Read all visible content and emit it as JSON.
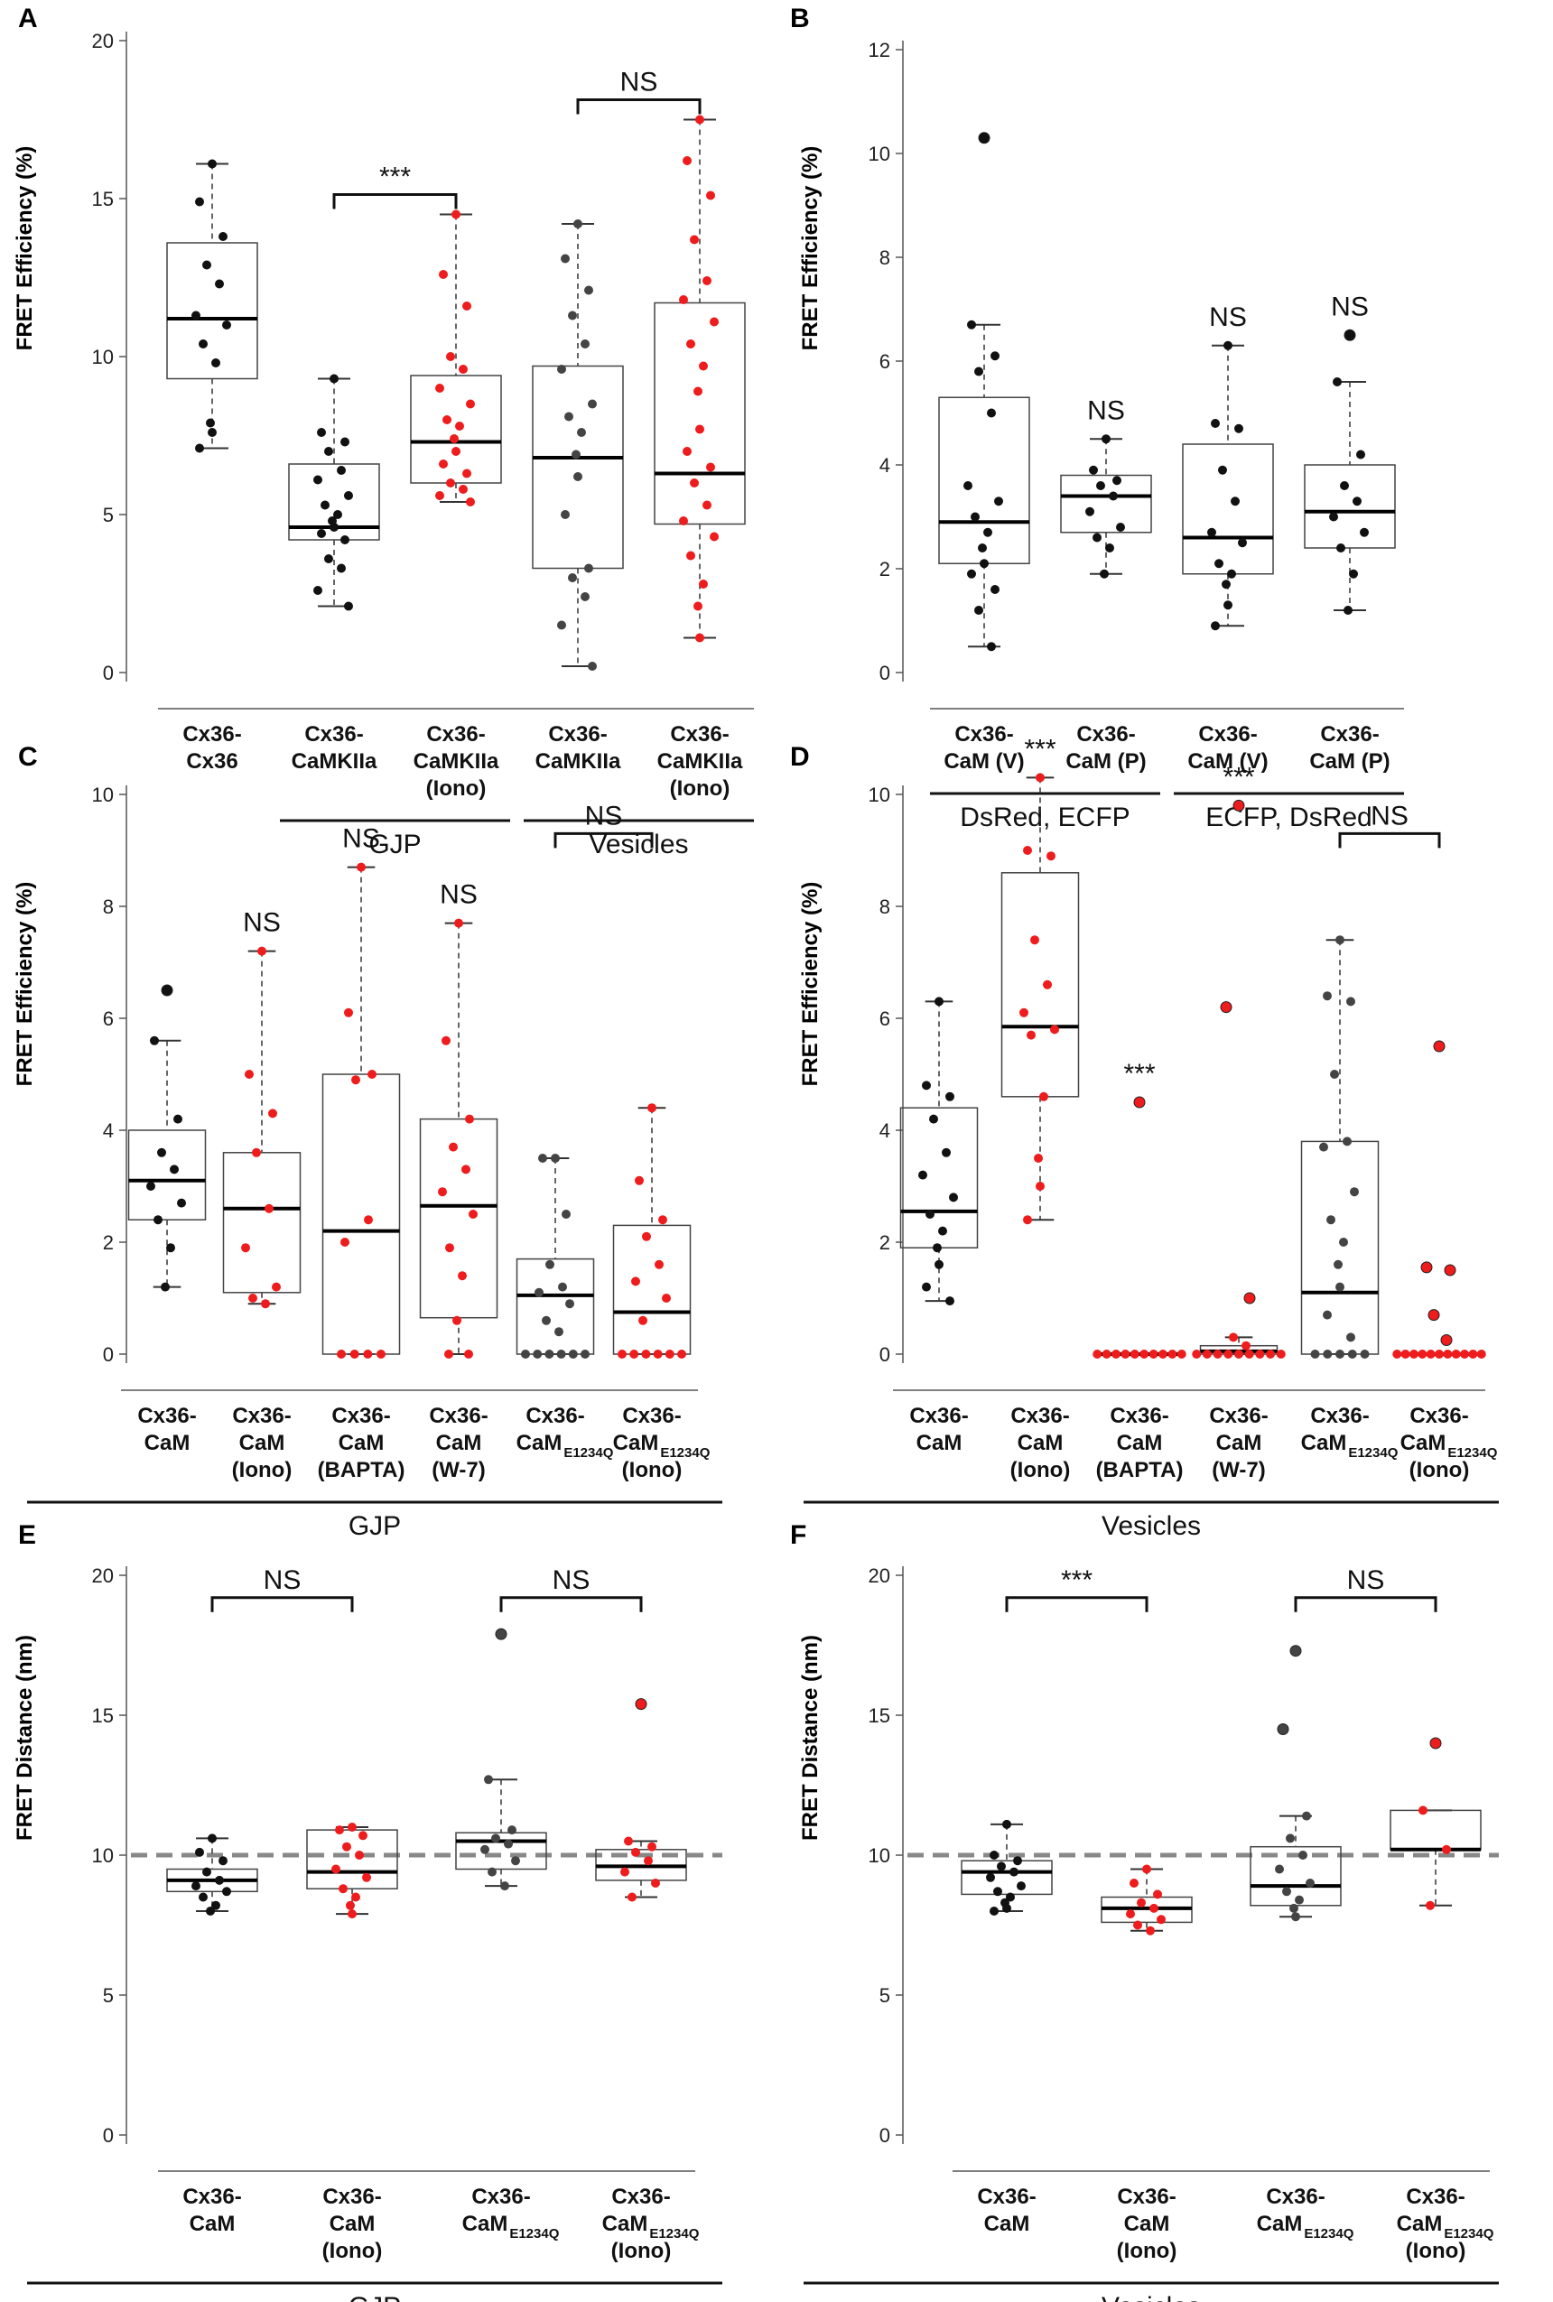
{
  "figure": {
    "panels": [
      "A",
      "B",
      "C",
      "D",
      "E",
      "F"
    ]
  },
  "colors": {
    "black": "#111111",
    "red": "#ee1c1c",
    "grey": "#444444",
    "dash": "#888888"
  },
  "chart_data": [
    {
      "id": "A",
      "type": "box",
      "title": "",
      "ylabel": "FRET Efficiency (%)",
      "ylim": [
        0,
        20
      ],
      "yticks": [
        0,
        5,
        10,
        15,
        20
      ],
      "boxes": [
        {
          "label": [
            "Cx36-",
            "Cx36"
          ],
          "color": "black",
          "whisker": [
            7.1,
            16.1
          ],
          "q1": 9.3,
          "median": 11.2,
          "q3": 13.6,
          "points": [
            16.1,
            14.9,
            13.8,
            12.9,
            12.3,
            11.3,
            11.0,
            10.4,
            9.8,
            7.9,
            7.6,
            7.1
          ]
        },
        {
          "label": [
            "Cx36-",
            "CaMKIIa"
          ],
          "color": "black",
          "whisker": [
            2.1,
            9.3
          ],
          "q1": 4.2,
          "median": 4.6,
          "q3": 6.6,
          "points": [
            9.3,
            7.6,
            7.3,
            7.0,
            6.4,
            6.1,
            5.6,
            5.3,
            5.0,
            4.8,
            4.6,
            4.4,
            4.2,
            3.6,
            3.3,
            2.6,
            2.1
          ]
        },
        {
          "label": [
            "Cx36-",
            "CaMKIIa",
            "(Iono)"
          ],
          "color": "red",
          "whisker": [
            5.4,
            14.5
          ],
          "q1": 6.0,
          "median": 7.3,
          "q3": 9.4,
          "points": [
            14.5,
            12.6,
            11.6,
            10.0,
            9.6,
            9.0,
            8.5,
            8.0,
            7.8,
            7.4,
            7.0,
            6.6,
            6.3,
            6.0,
            5.8,
            5.6,
            5.4
          ]
        },
        {
          "label": [
            "Cx36-",
            "CaMKIIa"
          ],
          "color": "grey",
          "whisker": [
            0.2,
            14.2
          ],
          "q1": 3.3,
          "median": 6.8,
          "q3": 9.7,
          "points": [
            14.2,
            13.1,
            12.1,
            11.3,
            10.4,
            9.6,
            8.5,
            8.1,
            7.6,
            6.9,
            6.2,
            5.0,
            3.3,
            3.0,
            2.4,
            1.5,
            0.2
          ]
        },
        {
          "label": [
            "Cx36-",
            "CaMKIIa",
            "(Iono)"
          ],
          "color": "red",
          "whisker": [
            1.1,
            17.5
          ],
          "q1": 4.7,
          "median": 6.3,
          "q3": 11.7,
          "points": [
            17.5,
            16.2,
            15.1,
            13.7,
            12.4,
            11.8,
            11.1,
            10.4,
            9.7,
            8.9,
            7.7,
            7.0,
            6.5,
            6.0,
            5.3,
            4.8,
            4.3,
            3.7,
            2.8,
            2.1,
            1.1
          ]
        }
      ],
      "annotations": [
        {
          "text": "***",
          "from": 1,
          "to": 2
        },
        {
          "text": "NS",
          "from": 3,
          "to": 4
        }
      ],
      "groups": [
        {
          "label": "GJP",
          "from": 1,
          "to": 2
        },
        {
          "label": "Vesicles",
          "from": 3,
          "to": 4
        }
      ]
    },
    {
      "id": "B",
      "type": "box",
      "ylabel": "FRET Efficiency (%)",
      "ylim": [
        0,
        12
      ],
      "yticks": [
        0,
        2,
        4,
        6,
        8,
        10,
        12
      ],
      "boxes": [
        {
          "label": [
            "Cx36-",
            "CaM (V)"
          ],
          "color": "black",
          "whisker": [
            0.5,
            6.7
          ],
          "q1": 2.1,
          "median": 2.9,
          "q3": 5.3,
          "points": [
            10.3,
            6.7,
            6.1,
            5.8,
            5.0,
            3.6,
            3.3,
            3.0,
            2.7,
            2.4,
            2.1,
            1.9,
            1.6,
            1.2,
            0.5
          ]
        },
        {
          "label": [
            "Cx36-",
            "CaM (P)"
          ],
          "color": "black",
          "whisker": [
            1.9,
            4.5
          ],
          "q1": 2.7,
          "median": 3.4,
          "q3": 3.8,
          "points": [
            4.5,
            3.9,
            3.7,
            3.6,
            3.4,
            3.1,
            2.8,
            2.6,
            2.4,
            1.9
          ]
        },
        {
          "label": [
            "Cx36-",
            "CaM (V)"
          ],
          "color": "black",
          "whisker": [
            0.9,
            6.3
          ],
          "q1": 1.9,
          "median": 2.6,
          "q3": 4.4,
          "points": [
            6.3,
            4.8,
            4.7,
            3.9,
            3.3,
            2.7,
            2.5,
            2.1,
            1.9,
            1.7,
            1.3,
            0.9
          ]
        },
        {
          "label": [
            "Cx36-",
            "CaM (P)"
          ],
          "color": "black",
          "whisker": [
            1.2,
            5.6
          ],
          "q1": 2.4,
          "median": 3.1,
          "q3": 4.0,
          "points": [
            6.5,
            5.6,
            4.2,
            3.6,
            3.3,
            3.0,
            2.7,
            2.4,
            1.9,
            1.2
          ]
        }
      ],
      "sig_above": [
        {
          "index": 1,
          "text": "NS"
        },
        {
          "index": 2,
          "text": "NS"
        },
        {
          "index": 3,
          "text": "NS"
        }
      ],
      "groups": [
        {
          "label": "DsRed, ECFP",
          "from": 0,
          "to": 1
        },
        {
          "label": "ECFP, DsRed",
          "from": 2,
          "to": 3
        }
      ]
    },
    {
      "id": "C",
      "type": "box",
      "ylabel": "FRET Efficiency (%)",
      "ylim": [
        0,
        10
      ],
      "yticks": [
        0,
        2,
        4,
        6,
        8,
        10
      ],
      "boxes": [
        {
          "label": [
            "Cx36-",
            "CaM"
          ],
          "color": "black",
          "whisker": [
            1.2,
            5.6
          ],
          "q1": 2.4,
          "median": 3.1,
          "q3": 4.0,
          "points": [
            6.5,
            5.6,
            4.2,
            3.6,
            3.3,
            3.0,
            2.7,
            2.4,
            1.9,
            1.2
          ]
        },
        {
          "label": [
            "Cx36-",
            "CaM",
            "(Iono)"
          ],
          "color": "red",
          "whisker": [
            0.9,
            7.2
          ],
          "q1": 1.1,
          "median": 2.6,
          "q3": 3.6,
          "points": [
            7.2,
            5.0,
            4.3,
            3.6,
            2.6,
            1.9,
            1.2,
            1.0,
            0.9
          ]
        },
        {
          "label": [
            "Cx36-",
            "CaM",
            "(BAPTA)"
          ],
          "color": "red",
          "whisker": [
            0,
            8.7
          ],
          "q1": 0,
          "median": 2.2,
          "q3": 5.0,
          "points": [
            8.7,
            6.1,
            5.0,
            4.9,
            2.4,
            2.0,
            0,
            0,
            0,
            0
          ]
        },
        {
          "label": [
            "Cx36-",
            "CaM",
            "(W-7)"
          ],
          "color": "red",
          "whisker": [
            0,
            7.7
          ],
          "q1": 0.65,
          "median": 2.65,
          "q3": 4.2,
          "points": [
            7.7,
            5.6,
            4.2,
            3.7,
            3.3,
            2.9,
            2.5,
            1.9,
            1.4,
            0.6,
            0,
            0
          ]
        },
        {
          "label": [
            "Cx36-",
            "CaM",
            "E1234Q"
          ],
          "color": "grey",
          "whisker": [
            0,
            3.5
          ],
          "q1": 0,
          "median": 1.05,
          "q3": 1.7,
          "points": [
            3.5,
            3.5,
            2.5,
            1.6,
            1.2,
            1.1,
            0.9,
            0.6,
            0.4,
            0,
            0,
            0,
            0,
            0,
            0
          ]
        },
        {
          "label": [
            "Cx36-",
            "CaM",
            "E1234Q",
            "(Iono)"
          ],
          "color": "red",
          "whisker": [
            0,
            4.4
          ],
          "q1": 0,
          "median": 0.75,
          "q3": 2.3,
          "points": [
            4.4,
            3.1,
            2.4,
            2.1,
            1.6,
            1.3,
            1.0,
            0.6,
            0,
            0,
            0,
            0,
            0,
            0
          ]
        }
      ],
      "sig_above": [
        {
          "index": 1,
          "text": "NS"
        },
        {
          "index": 2,
          "text": "NS"
        },
        {
          "index": 3,
          "text": "NS"
        }
      ],
      "annotations": [
        {
          "text": "NS",
          "from": 4,
          "to": 5
        }
      ],
      "groups": [
        {
          "label": "GJP",
          "from": 0,
          "to": 5
        }
      ]
    },
    {
      "id": "D",
      "type": "box",
      "ylabel": "FRET Efficiency (%)",
      "ylim": [
        0,
        10
      ],
      "yticks": [
        0,
        2,
        4,
        6,
        8,
        10
      ],
      "boxes": [
        {
          "label": [
            "Cx36-",
            "CaM"
          ],
          "color": "black",
          "whisker": [
            0.95,
            6.3
          ],
          "q1": 1.9,
          "median": 2.55,
          "q3": 4.4,
          "points": [
            6.3,
            4.8,
            4.6,
            4.2,
            3.6,
            3.2,
            2.8,
            2.5,
            2.2,
            1.9,
            1.6,
            1.2,
            0.95
          ]
        },
        {
          "label": [
            "Cx36-",
            "CaM",
            "(Iono)"
          ],
          "color": "red",
          "whisker": [
            2.4,
            10.3
          ],
          "q1": 4.6,
          "median": 5.85,
          "q3": 8.6,
          "points": [
            10.3,
            9.0,
            8.9,
            7.4,
            6.6,
            6.1,
            5.8,
            5.7,
            4.6,
            3.5,
            3.0,
            2.4
          ]
        },
        {
          "label": [
            "Cx36-",
            "CaM",
            "(BAPTA)"
          ],
          "color": "red",
          "whisker": [
            0,
            0
          ],
          "q1": 0,
          "median": 0,
          "q3": 0,
          "points": [
            4.5,
            0,
            0,
            0,
            0,
            0,
            0,
            0,
            0,
            0,
            0
          ]
        },
        {
          "label": [
            "Cx36-",
            "CaM",
            "(W-7)"
          ],
          "color": "red",
          "whisker": [
            0,
            0.3
          ],
          "q1": 0,
          "median": 0.05,
          "q3": 0.15,
          "points": [
            9.8,
            6.2,
            1.0,
            0.3,
            0.15,
            0,
            0,
            0,
            0,
            0,
            0,
            0,
            0,
            0
          ]
        },
        {
          "label": [
            "Cx36-",
            "CaM",
            "E1234Q"
          ],
          "color": "grey",
          "whisker": [
            0,
            7.4
          ],
          "q1": 0,
          "median": 1.1,
          "q3": 3.8,
          "points": [
            7.4,
            6.4,
            6.3,
            5.0,
            3.8,
            3.7,
            2.9,
            2.4,
            2.0,
            1.6,
            1.2,
            0.7,
            0.3,
            0,
            0,
            0,
            0,
            0
          ]
        },
        {
          "label": [
            "Cx36-",
            "CaM",
            "E1234Q",
            "(Iono)"
          ],
          "color": "red",
          "whisker": [
            0,
            0
          ],
          "q1": 0,
          "median": 0,
          "q3": 0,
          "points": [
            5.5,
            1.55,
            1.5,
            0.7,
            0.25,
            0,
            0,
            0,
            0,
            0,
            0,
            0,
            0,
            0,
            0,
            0
          ]
        }
      ],
      "sig_above": [
        {
          "index": 1,
          "text": "***"
        },
        {
          "index": 2,
          "text": "***"
        },
        {
          "index": 3,
          "text": "***"
        }
      ],
      "annotations": [
        {
          "text": "NS",
          "from": 4,
          "to": 5
        }
      ],
      "groups": [
        {
          "label": "Vesicles",
          "from": 0,
          "to": 5
        }
      ]
    },
    {
      "id": "E",
      "type": "box",
      "ylabel": "FRET Distance (nm)",
      "ylim": [
        0,
        20
      ],
      "yticks": [
        0,
        5,
        10,
        15,
        20
      ],
      "refline": 10,
      "boxes": [
        {
          "label": [
            "Cx36-",
            "CaM"
          ],
          "color": "black",
          "whisker": [
            8.0,
            10.6
          ],
          "q1": 8.7,
          "median": 9.1,
          "q3": 9.5,
          "points": [
            10.6,
            10.1,
            9.8,
            9.4,
            9.1,
            8.9,
            8.7,
            8.5,
            8.2,
            8.0
          ]
        },
        {
          "label": [
            "Cx36-",
            "CaM",
            "(Iono)"
          ],
          "color": "red",
          "whisker": [
            7.9,
            11.0
          ],
          "q1": 8.8,
          "median": 9.4,
          "q3": 10.9,
          "points": [
            11.0,
            10.9,
            10.7,
            10.3,
            10.0,
            9.5,
            9.2,
            8.8,
            8.5,
            8.2,
            7.9
          ]
        },
        {
          "label": [
            "Cx36-",
            "CaM",
            "E1234Q"
          ],
          "color": "grey",
          "whisker": [
            8.9,
            12.7
          ],
          "q1": 9.5,
          "median": 10.5,
          "q3": 10.8,
          "points": [
            17.9,
            12.7,
            10.9,
            10.6,
            10.4,
            10.2,
            9.8,
            9.4,
            8.9
          ]
        },
        {
          "label": [
            "Cx36-",
            "CaM",
            "E1234Q",
            "(Iono)"
          ],
          "color": "red",
          "whisker": [
            8.5,
            10.5
          ],
          "q1": 9.1,
          "median": 9.6,
          "q3": 10.2,
          "points": [
            15.4,
            10.5,
            10.3,
            10.1,
            9.8,
            9.4,
            9.0,
            8.5
          ]
        }
      ],
      "annotations": [
        {
          "text": "NS",
          "from": 0,
          "to": 1
        },
        {
          "text": "NS",
          "from": 2,
          "to": 3
        }
      ],
      "groups": [
        {
          "label": "GJP",
          "from": 0,
          "to": 3
        }
      ]
    },
    {
      "id": "F",
      "type": "box",
      "ylabel": "FRET Distance (nm)",
      "ylim": [
        0,
        20
      ],
      "yticks": [
        0,
        5,
        10,
        15,
        20
      ],
      "refline": 10,
      "boxes": [
        {
          "label": [
            "Cx36-",
            "CaM"
          ],
          "color": "black",
          "whisker": [
            8.0,
            11.1
          ],
          "q1": 8.6,
          "median": 9.4,
          "q3": 9.8,
          "points": [
            11.1,
            10.0,
            9.8,
            9.6,
            9.4,
            9.2,
            8.9,
            8.7,
            8.5,
            8.3,
            8.1,
            8.0
          ]
        },
        {
          "label": [
            "Cx36-",
            "CaM",
            "(Iono)"
          ],
          "color": "red",
          "whisker": [
            7.3,
            9.5
          ],
          "q1": 7.6,
          "median": 8.1,
          "q3": 8.5,
          "points": [
            9.5,
            9.0,
            8.6,
            8.3,
            8.1,
            7.9,
            7.7,
            7.5,
            7.3
          ]
        },
        {
          "label": [
            "Cx36-",
            "CaM",
            "E1234Q"
          ],
          "color": "grey",
          "whisker": [
            7.8,
            11.4
          ],
          "q1": 8.2,
          "median": 8.9,
          "q3": 10.3,
          "points": [
            17.3,
            14.5,
            11.4,
            10.6,
            10.0,
            9.5,
            9.0,
            8.7,
            8.4,
            8.1,
            7.8
          ]
        },
        {
          "label": [
            "Cx36-",
            "CaM",
            "E1234Q",
            "(Iono)"
          ],
          "color": "red",
          "whisker": [
            8.2,
            11.6
          ],
          "q1": 10.2,
          "median": 10.2,
          "q3": 11.6,
          "points": [
            14.0,
            11.6,
            10.2,
            8.2
          ]
        }
      ],
      "annotations": [
        {
          "text": "***",
          "from": 0,
          "to": 1
        },
        {
          "text": "NS",
          "from": 2,
          "to": 3
        }
      ],
      "groups": [
        {
          "label": "Vesicles",
          "from": 0,
          "to": 3
        }
      ]
    }
  ]
}
